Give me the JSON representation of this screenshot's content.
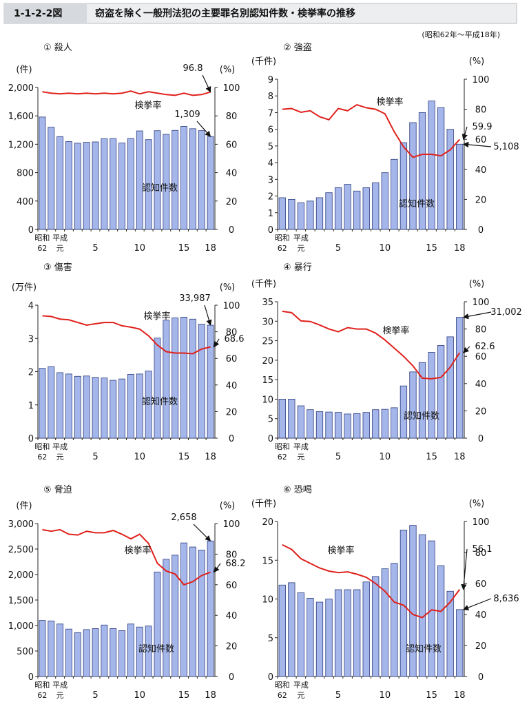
{
  "header": {
    "figure_id": "1-1-2-2図",
    "title": "窃盗を除く一般刑法犯の主要罪名別認知件数・検挙率の推移",
    "note": "(昭和62年～平成18年)"
  },
  "chart_data": [
    {
      "type": "bar_line",
      "title": "① 殺人",
      "ylabel": "(件)",
      "y2label": "(%)",
      "categories": [
        "昭和\n62",
        null,
        "平成\n元",
        null,
        null,
        null,
        "5",
        null,
        null,
        null,
        null,
        "10",
        null,
        null,
        null,
        null,
        "15",
        null,
        null,
        "18"
      ],
      "ylim": [
        0,
        2000
      ],
      "yticks": [
        0,
        400,
        800,
        {
          "value": 1200,
          "label": "1,200"
        },
        {
          "value": 1600,
          "label": "1,600"
        },
        {
          "value": 2000,
          "label": "2,000"
        }
      ],
      "y2lim": [
        0,
        100
      ],
      "y2ticks": [
        0,
        20,
        40,
        60,
        80,
        100
      ],
      "series": [
        {
          "name": "認知件数",
          "color": "#a5b6ea",
          "values": [
            1584,
            1441,
            1308,
            1238,
            1215,
            1227,
            1233,
            1279,
            1281,
            1218,
            1282,
            1388,
            1265,
            1391,
            1340,
            1396,
            1452,
            1419,
            1392,
            1309
          ],
          "value_labels": [
            null,
            null,
            null,
            null,
            null,
            null,
            null,
            null,
            null,
            null,
            null,
            null,
            null,
            null,
            null,
            null,
            null,
            null,
            null,
            "1,309"
          ]
        },
        {
          "name": "検挙率",
          "color": "#e0201b",
          "axis": "y2",
          "values": [
            97,
            96,
            95.5,
            96,
            95.5,
            96,
            95.5,
            96,
            95.5,
            96,
            97.5,
            95.5,
            97,
            96,
            95,
            94.5,
            96,
            94.5,
            95,
            96.8
          ],
          "value_labels": [
            null,
            null,
            null,
            null,
            null,
            null,
            null,
            null,
            null,
            null,
            null,
            null,
            null,
            null,
            null,
            null,
            null,
            null,
            null,
            "96.8"
          ]
        }
      ]
    },
    {
      "type": "bar_line",
      "title": "② 強盗",
      "ylabel": "(千件)",
      "y2label": "(%)",
      "categories": [
        "昭和\n62",
        null,
        "平成\n元",
        null,
        null,
        null,
        "5",
        null,
        null,
        null,
        null,
        "10",
        null,
        null,
        null,
        null,
        "15",
        null,
        null,
        "18"
      ],
      "ylim": [
        0,
        9
      ],
      "yticks": [
        0,
        1,
        2,
        3,
        4,
        5,
        6,
        7,
        8,
        9
      ],
      "y2lim": [
        0,
        100
      ],
      "y2ticks": [
        0,
        20,
        40,
        60,
        80,
        100
      ],
      "series": [
        {
          "name": "認知件数",
          "color": "#a5b6ea",
          "values": [
            1.9,
            1.8,
            1.6,
            1.7,
            1.9,
            2.2,
            2.5,
            2.7,
            2.3,
            2.5,
            2.8,
            3.4,
            4.2,
            5.2,
            6.4,
            7.0,
            7.7,
            7.3,
            6.0,
            5.108
          ],
          "value_labels": [
            null,
            null,
            null,
            null,
            null,
            null,
            null,
            null,
            null,
            null,
            null,
            null,
            null,
            null,
            null,
            null,
            null,
            null,
            null,
            "5,108"
          ]
        },
        {
          "name": "検挙率",
          "color": "#e0201b",
          "axis": "y2",
          "values": [
            80,
            80.5,
            78,
            79,
            75,
            73,
            80.5,
            79,
            83,
            81,
            80,
            77,
            65,
            55,
            48,
            50,
            50,
            49,
            53,
            59.9
          ],
          "value_labels": [
            null,
            null,
            null,
            null,
            null,
            null,
            null,
            null,
            null,
            null,
            null,
            null,
            null,
            null,
            null,
            null,
            null,
            null,
            null,
            "59.9"
          ]
        }
      ]
    },
    {
      "type": "bar_line",
      "title": "③ 傷害",
      "ylabel": "(万件)",
      "y2label": "(%)",
      "categories": [
        "昭和\n62",
        null,
        "平成\n元",
        null,
        null,
        null,
        "5",
        null,
        null,
        null,
        null,
        "10",
        null,
        null,
        null,
        null,
        "15",
        null,
        null,
        "18"
      ],
      "ylim": [
        0,
        4
      ],
      "yticks": [
        0,
        1,
        2,
        3,
        4
      ],
      "y2lim": [
        0,
        100
      ],
      "y2ticks": [
        0,
        20,
        40,
        60,
        80,
        100
      ],
      "series": [
        {
          "name": "認知件数",
          "color": "#a5b6ea",
          "values": [
            2.1,
            2.15,
            1.97,
            1.93,
            1.86,
            1.87,
            1.83,
            1.81,
            1.74,
            1.78,
            1.92,
            1.93,
            2.02,
            3.01,
            3.55,
            3.62,
            3.64,
            3.58,
            3.43,
            3.3987
          ],
          "value_labels": [
            null,
            null,
            null,
            null,
            null,
            null,
            null,
            null,
            null,
            null,
            null,
            null,
            null,
            null,
            null,
            null,
            null,
            null,
            null,
            "33,987"
          ]
        },
        {
          "name": "検挙率",
          "color": "#e0201b",
          "axis": "y2",
          "values": [
            92,
            91.5,
            89.5,
            89,
            87,
            85,
            86,
            87,
            87,
            84.5,
            83.5,
            82,
            77,
            70,
            65,
            64,
            64,
            63.5,
            67,
            68.6
          ],
          "value_labels": [
            null,
            null,
            null,
            null,
            null,
            null,
            null,
            null,
            null,
            null,
            null,
            null,
            null,
            null,
            null,
            null,
            null,
            null,
            null,
            "68.6"
          ]
        }
      ]
    },
    {
      "type": "bar_line",
      "title": "④ 暴行",
      "ylabel": "(千件)",
      "y2label": "(%)",
      "categories": [
        "昭和\n62",
        null,
        "平成\n元",
        null,
        null,
        null,
        "5",
        null,
        null,
        null,
        null,
        "10",
        null,
        null,
        null,
        null,
        "15",
        null,
        null,
        "18"
      ],
      "ylim": [
        0,
        35
      ],
      "yticks": [
        0,
        5,
        10,
        15,
        20,
        25,
        30,
        35
      ],
      "y2lim": [
        0,
        100
      ],
      "y2ticks": [
        0,
        20,
        40,
        60,
        80,
        100
      ],
      "series": [
        {
          "name": "認知件数",
          "color": "#a5b6ea",
          "values": [
            10,
            10,
            8.3,
            7.3,
            6.8,
            6.7,
            6.6,
            6.2,
            6.3,
            6.6,
            7.3,
            7.4,
            7.8,
            13.4,
            17,
            19.4,
            22,
            23.8,
            26,
            31.002
          ],
          "value_labels": [
            null,
            null,
            null,
            null,
            null,
            null,
            null,
            null,
            null,
            null,
            null,
            null,
            null,
            null,
            null,
            null,
            null,
            null,
            null,
            "31,002"
          ]
        },
        {
          "name": "検挙率",
          "color": "#e0201b",
          "axis": "y2",
          "values": [
            93,
            92,
            86,
            85.5,
            83,
            80,
            78,
            81,
            80,
            80,
            77,
            72,
            66,
            60,
            53,
            44,
            43.5,
            44.5,
            52,
            62.6
          ],
          "value_labels": [
            null,
            null,
            null,
            null,
            null,
            null,
            null,
            null,
            null,
            null,
            null,
            null,
            null,
            null,
            null,
            null,
            null,
            null,
            null,
            "62.6"
          ]
        }
      ]
    },
    {
      "type": "bar_line",
      "title": "⑤ 脅迫",
      "ylabel": "(件)",
      "y2label": "(%)",
      "categories": [
        "昭和\n62",
        null,
        "平成\n元",
        null,
        null,
        null,
        "5",
        null,
        null,
        null,
        null,
        "10",
        null,
        null,
        null,
        null,
        "15",
        null,
        null,
        "18"
      ],
      "ylim": [
        0,
        3000
      ],
      "yticks": [
        0,
        500,
        {
          "value": 1000,
          "label": "1,000"
        },
        {
          "value": 1500,
          "label": "1,500"
        },
        {
          "value": 2000,
          "label": "2,000"
        },
        {
          "value": 2500,
          "label": "2,500"
        },
        {
          "value": 3000,
          "label": "3,000"
        }
      ],
      "y2lim": [
        0,
        100
      ],
      "y2ticks": [
        0,
        20,
        40,
        60,
        80,
        100
      ],
      "series": [
        {
          "name": "認知件数",
          "color": "#a5b6ea",
          "values": [
            1100,
            1090,
            1030,
            930,
            860,
            920,
            940,
            1010,
            940,
            900,
            1030,
            970,
            990,
            2050,
            2300,
            2380,
            2620,
            2540,
            2480,
            2658
          ],
          "value_labels": [
            null,
            null,
            null,
            null,
            null,
            null,
            null,
            null,
            null,
            null,
            null,
            null,
            null,
            null,
            null,
            null,
            null,
            null,
            null,
            "2,658"
          ]
        },
        {
          "name": "検挙率",
          "color": "#e0201b",
          "axis": "y2",
          "values": [
            96,
            95,
            96,
            93,
            92.5,
            95,
            94,
            94,
            95.5,
            93,
            90,
            93,
            87,
            74,
            69,
            67,
            60,
            62,
            66,
            68.2
          ],
          "value_labels": [
            null,
            null,
            null,
            null,
            null,
            null,
            null,
            null,
            null,
            null,
            null,
            null,
            null,
            null,
            null,
            null,
            null,
            null,
            null,
            "68.2"
          ]
        }
      ]
    },
    {
      "type": "bar_line",
      "title": "⑥ 恐喝",
      "ylabel": "(千件)",
      "y2label": "(%)",
      "categories": [
        "昭和\n62",
        null,
        "平成\n元",
        null,
        null,
        null,
        "5",
        null,
        null,
        null,
        null,
        "10",
        null,
        null,
        null,
        null,
        "15",
        null,
        null,
        "18"
      ],
      "ylim": [
        0,
        20
      ],
      "yticks": [
        0,
        5,
        10,
        15,
        20
      ],
      "y2lim": [
        0,
        100
      ],
      "y2ticks": [
        0,
        20,
        40,
        60,
        80,
        100
      ],
      "series": [
        {
          "name": "認知件数",
          "color": "#a5b6ea",
          "values": [
            11.8,
            12.1,
            10.8,
            10.1,
            9.6,
            10,
            11.2,
            11.2,
            11.2,
            12.2,
            12.9,
            13.9,
            14.6,
            18.9,
            19.5,
            18.3,
            17.5,
            14.3,
            11,
            8.636
          ],
          "value_labels": [
            null,
            null,
            null,
            null,
            null,
            null,
            null,
            null,
            null,
            null,
            null,
            null,
            null,
            null,
            null,
            null,
            null,
            null,
            null,
            "8,636"
          ]
        },
        {
          "name": "検挙率",
          "color": "#e0201b",
          "axis": "y2",
          "values": [
            85,
            82,
            76,
            73,
            70,
            68,
            67,
            67.5,
            66,
            64,
            60,
            55,
            48,
            46,
            40,
            38,
            43,
            42,
            48,
            56.1
          ],
          "value_labels": [
            null,
            null,
            null,
            null,
            null,
            null,
            null,
            null,
            null,
            null,
            null,
            null,
            null,
            null,
            null,
            null,
            null,
            null,
            null,
            "56.1"
          ]
        }
      ]
    }
  ]
}
